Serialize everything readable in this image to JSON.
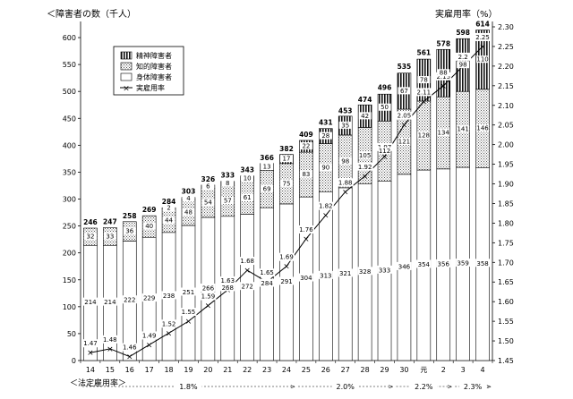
{
  "chart_data": {
    "type": "bar",
    "ylabel_left": "＜障害者の数（千人）",
    "ylabel_right": "実雇用率（%）",
    "xlabel": "＜法定雇用率＞",
    "ylim_left": [
      0,
      620
    ],
    "yticks_left": [
      0,
      50,
      100,
      150,
      200,
      250,
      300,
      350,
      400,
      450,
      500,
      550,
      600
    ],
    "ylim_right": [
      1.45,
      2.3
    ],
    "yticks_right": [
      "1.45",
      "1.50",
      "1.55",
      "1.60",
      "1.65",
      "1.70",
      "1.75",
      "1.80",
      "1.85",
      "1.90",
      "1.95",
      "2.00",
      "2.05",
      "2.10",
      "2.15",
      "2.20",
      "2.25",
      "2.30"
    ],
    "categories": [
      "14",
      "15",
      "16",
      "17",
      "18",
      "19",
      "20",
      "21",
      "22",
      "23",
      "24",
      "25",
      "26",
      "27",
      "28",
      "29",
      "30",
      "元",
      "2",
      "3",
      "4"
    ],
    "series": [
      {
        "name": "身体障害者",
        "values": [
          214,
          214,
          222,
          229,
          238,
          251,
          266,
          268,
          272,
          284,
          291,
          304,
          313,
          321,
          328,
          333,
          346,
          354,
          356,
          359,
          358
        ]
      },
      {
        "name": "知的障害者",
        "values": [
          32,
          33,
          36,
          40,
          44,
          48,
          54,
          57,
          61,
          69,
          75,
          83,
          90,
          98,
          105,
          112,
          121,
          128,
          134,
          141,
          146
        ]
      },
      {
        "name": "精神障害者",
        "values": [
          0,
          0,
          0,
          0,
          2,
          4,
          6,
          8,
          10,
          13,
          17,
          22,
          28,
          35,
          42,
          50,
          67,
          78,
          88,
          98,
          110
        ]
      }
    ],
    "totals": [
      246,
      247,
      258,
      269,
      284,
      303,
      326,
      333,
      343,
      366,
      382,
      409,
      431,
      453,
      474,
      496,
      535,
      561,
      578,
      598,
      614
    ],
    "line": {
      "name": "実雇用率",
      "values": [
        1.47,
        1.48,
        1.46,
        1.49,
        1.52,
        1.55,
        1.59,
        1.63,
        1.68,
        1.65,
        1.69,
        1.76,
        1.82,
        1.88,
        1.92,
        1.97,
        2.05,
        2.11,
        2.15,
        2.2,
        2.25
      ]
    },
    "mental_labels": [
      "",
      "",
      "",
      "",
      "2",
      "4",
      "6",
      "8",
      "10",
      "13",
      "17",
      "22",
      "28",
      "35",
      "42",
      "50",
      "67",
      "78",
      "88",
      "98",
      "110"
    ],
    "legal_rates": [
      {
        "label": "1.8%",
        "from": 0,
        "to": 10
      },
      {
        "label": "2.0%",
        "from": 11,
        "to": 15
      },
      {
        "label": "2.2%",
        "from": 16,
        "to": 18
      },
      {
        "label": "2.3%",
        "from": 19,
        "to": 20
      }
    ],
    "grid": false,
    "legend_position": "top-left"
  }
}
